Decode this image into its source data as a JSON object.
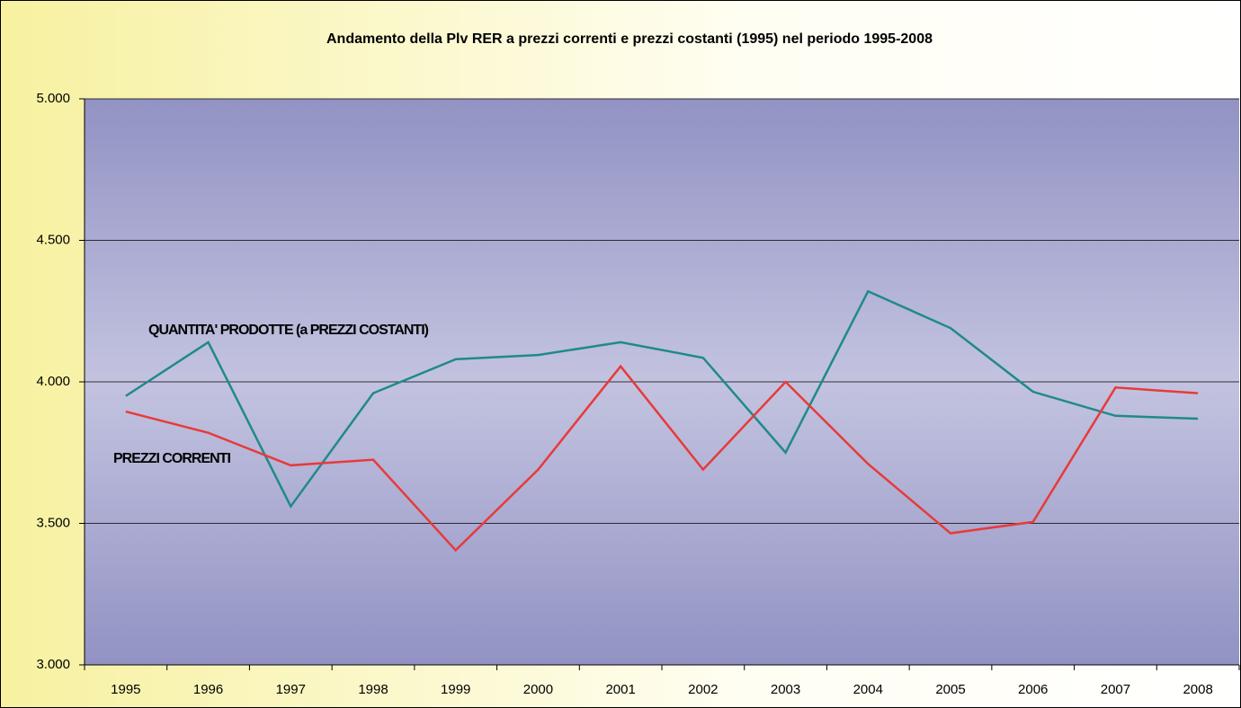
{
  "chart_data": {
    "type": "line",
    "title": "Andamento della Plv RER a prezzi correnti e prezzi costanti (1995) nel periodo 1995-2008",
    "categories": [
      "1995",
      "1996",
      "1997",
      "1998",
      "1999",
      "2000",
      "2001",
      "2002",
      "2003",
      "2004",
      "2005",
      "2006",
      "2007",
      "2008"
    ],
    "series": [
      {
        "name": "QUANTITA' PRODOTTE (a PREZZI COSTANTI)",
        "color": "#1f8a8a",
        "values": [
          3950,
          4140,
          3560,
          3960,
          4080,
          4095,
          4140,
          4085,
          3750,
          4320,
          4190,
          3965,
          3880,
          3870
        ]
      },
      {
        "name": "PREZZI CORRENTI",
        "color": "#e83a3a",
        "values": [
          3895,
          3820,
          3705,
          3725,
          3405,
          3690,
          4055,
          3690,
          4000,
          3710,
          3465,
          3505,
          3980,
          3960
        ]
      }
    ],
    "ylim": [
      3000,
      5000
    ],
    "yticks": [
      {
        "value": 3000,
        "label": "3.000"
      },
      {
        "value": 3500,
        "label": "3.500"
      },
      {
        "value": 4000,
        "label": "4.000"
      },
      {
        "value": 4500,
        "label": "4.500"
      },
      {
        "value": 5000,
        "label": "5.000"
      }
    ],
    "grid": true
  }
}
